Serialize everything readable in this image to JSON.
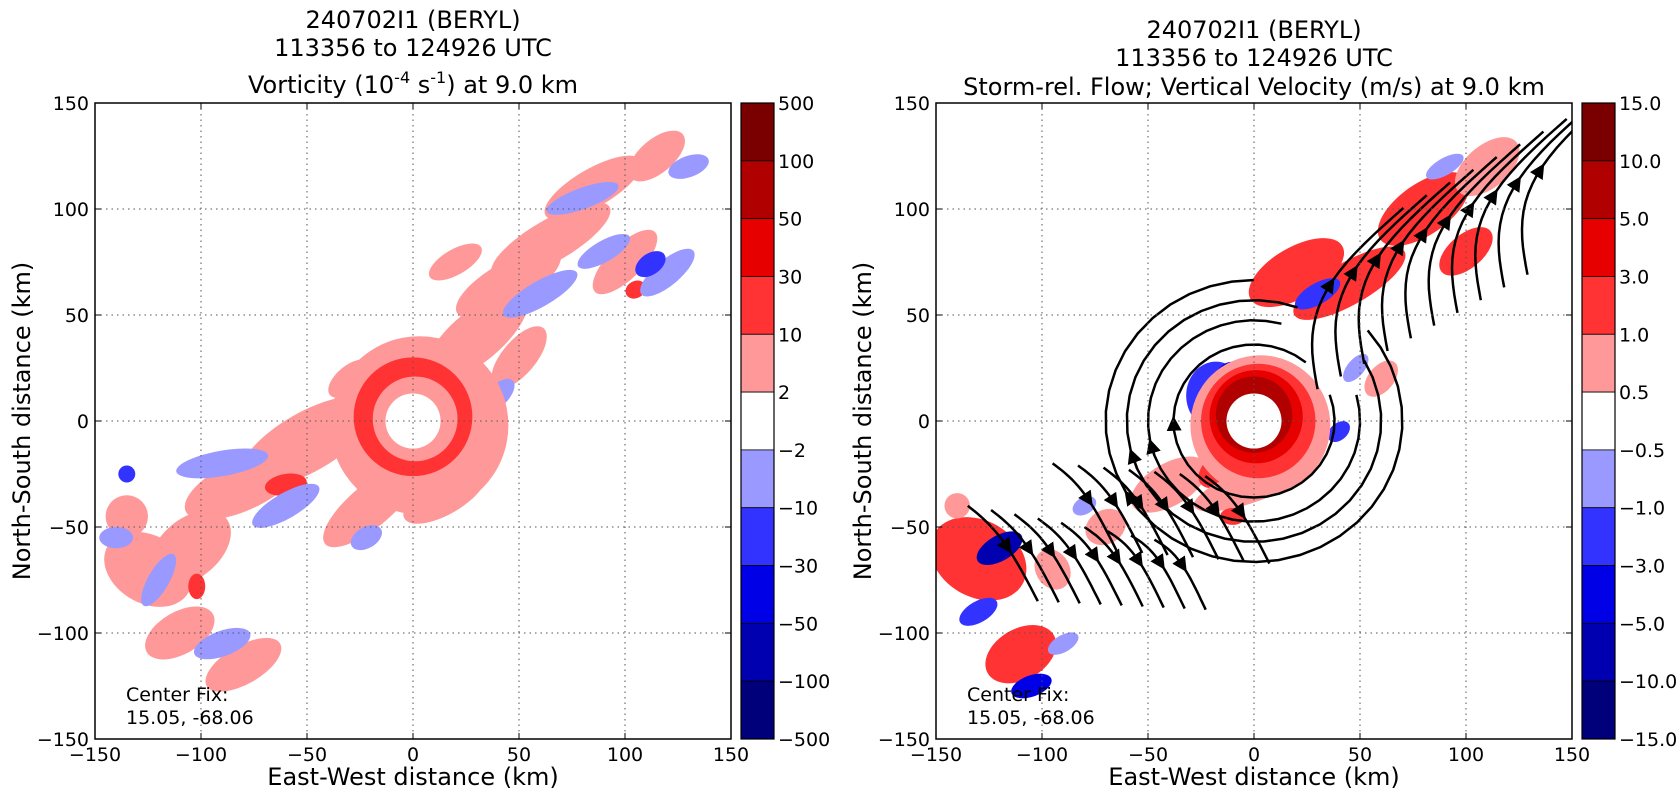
{
  "chart_data": [
    {
      "type": "heatmap",
      "title_lines": [
        "240702I1 (BERYL)",
        "113356 to 124926 UTC"
      ],
      "title_var_prefix": "Vorticity (10",
      "title_var_sup1": "-4",
      "title_var_mid": " s",
      "title_var_sup2": "-1",
      "title_var_suffix": ") at 9.0 km",
      "xlabel": "East-West distance (km)",
      "ylabel": "North-South distance (km)",
      "xlim": [
        -150,
        150
      ],
      "ylim": [
        -150,
        150
      ],
      "xticks": [
        -150,
        -100,
        -50,
        0,
        50,
        100,
        150
      ],
      "yticks": [
        -150,
        -100,
        -50,
        0,
        50,
        100,
        150
      ],
      "xtick_labels": [
        "−150",
        "−100",
        "−50",
        "0",
        "50",
        "100",
        "150"
      ],
      "ytick_labels": [
        "−150",
        "−100",
        "−50",
        "0",
        "50",
        "100",
        "150"
      ],
      "grid": true,
      "center_fix_label": "Center Fix:",
      "center_fix_value": "15.05, -68.06",
      "colorbar": {
        "levels": [
          "500",
          "100",
          "50",
          "30",
          "10",
          "2",
          "−2",
          "−10",
          "−30",
          "−50",
          "−100",
          "−500"
        ],
        "colors": [
          "#7a0000",
          "#b00000",
          "#e60000",
          "#ff3333",
          "#ff9999",
          "#ffffff",
          "#9999ff",
          "#3333ff",
          "#0000e6",
          "#0000b0",
          "#00007a"
        ]
      },
      "features": {
        "band_angle_deg": 45,
        "eye_radius": 13,
        "eyewall_levels": [
          {
            "r": 20,
            "level": 4,
            "dx": 1,
            "dy": 1
          },
          {
            "r": 28,
            "level": 3,
            "dx": 0,
            "dy": 2
          },
          {
            "r": 42,
            "level": 4,
            "dx": 3,
            "dy": -2
          }
        ],
        "blobs": [
          [
            -50,
            -10,
            36,
            14,
            30,
            4
          ],
          [
            -80,
            -30,
            30,
            12,
            25,
            4
          ],
          [
            -105,
            -60,
            22,
            14,
            40,
            4
          ],
          [
            -125,
            -70,
            16,
            22,
            60,
            4
          ],
          [
            -110,
            -100,
            18,
            10,
            30,
            4
          ],
          [
            -80,
            -115,
            20,
            9,
            30,
            4
          ],
          [
            -135,
            -45,
            10,
            10,
            0,
            4
          ],
          [
            -20,
            -40,
            28,
            10,
            40,
            4
          ],
          [
            15,
            -35,
            22,
            9,
            30,
            4
          ],
          [
            -30,
            20,
            12,
            6,
            40,
            4
          ],
          [
            30,
            40,
            30,
            12,
            40,
            4
          ],
          [
            45,
            65,
            28,
            10,
            30,
            4
          ],
          [
            65,
            85,
            32,
            10,
            30,
            4
          ],
          [
            85,
            110,
            26,
            9,
            30,
            4
          ],
          [
            115,
            125,
            16,
            8,
            40,
            4
          ],
          [
            100,
            75,
            20,
            8,
            45,
            4
          ],
          [
            20,
            75,
            14,
            6,
            30,
            4
          ],
          [
            50,
            30,
            18,
            8,
            50,
            4
          ],
          [
            -60,
            -30,
            10,
            5,
            10,
            3
          ],
          [
            105,
            62,
            5,
            4,
            30,
            3
          ],
          [
            -102,
            -78,
            4,
            6,
            0,
            3
          ],
          [
            -90,
            -20,
            22,
            6,
            10,
            6
          ],
          [
            -60,
            -40,
            18,
            6,
            30,
            6
          ],
          [
            -120,
            -75,
            14,
            5,
            60,
            6
          ],
          [
            -90,
            -105,
            14,
            6,
            20,
            6
          ],
          [
            -5,
            -30,
            12,
            5,
            60,
            6
          ],
          [
            -22,
            -55,
            8,
            5,
            30,
            6
          ],
          [
            40,
            12,
            10,
            5,
            45,
            6
          ],
          [
            60,
            60,
            20,
            6,
            30,
            6
          ],
          [
            80,
            105,
            18,
            5,
            20,
            6
          ],
          [
            90,
            80,
            14,
            5,
            30,
            6
          ],
          [
            120,
            70,
            16,
            6,
            40,
            6
          ],
          [
            130,
            120,
            10,
            5,
            20,
            6
          ],
          [
            -140,
            -55,
            8,
            5,
            0,
            6
          ],
          [
            112,
            74,
            8,
            5,
            35,
            7
          ],
          [
            -135,
            -25,
            4,
            4,
            0,
            7
          ]
        ]
      }
    },
    {
      "type": "heatmap",
      "title_lines": [
        "240702I1 (BERYL)",
        "113356 to 124926 UTC"
      ],
      "title_var": "Storm-rel. Flow; Vertical Velocity (m/s) at 9.0 km",
      "xlabel": "East-West distance (km)",
      "ylabel": "North-South distance (km)",
      "xlim": [
        -150,
        150
      ],
      "ylim": [
        -150,
        150
      ],
      "xticks": [
        -150,
        -100,
        -50,
        0,
        50,
        100,
        150
      ],
      "yticks": [
        -150,
        -100,
        -50,
        0,
        50,
        100,
        150
      ],
      "xtick_labels": [
        "−150",
        "−100",
        "−50",
        "0",
        "50",
        "100",
        "150"
      ],
      "ytick_labels": [
        "−150",
        "−100",
        "−50",
        "0",
        "50",
        "100",
        "150"
      ],
      "grid": true,
      "center_fix_label": "Center Fix:",
      "center_fix_value": "15.05, -68.06",
      "colorbar": {
        "levels": [
          "15.0",
          "10.0",
          "5.0",
          "3.0",
          "1.0",
          "0.5",
          "−0.5",
          "−1.0",
          "−3.0",
          "−5.0",
          "−10.0",
          "−15.0"
        ],
        "colors": [
          "#7a0000",
          "#b00000",
          "#e60000",
          "#ff3333",
          "#ff9999",
          "#ffffff",
          "#9999ff",
          "#3333ff",
          "#0000e6",
          "#0000b0",
          "#00007a"
        ]
      },
      "features": {
        "band_angle_deg": 45,
        "eye_radius": 13,
        "eyewall_levels": [
          {
            "r": 18,
            "level": 1,
            "dx": 0,
            "dy": 3
          },
          {
            "r": 22,
            "level": 2,
            "dx": 1,
            "dy": 2
          },
          {
            "r": 27,
            "level": 3,
            "dx": 2,
            "dy": 0
          },
          {
            "r": 33,
            "level": 4,
            "dx": 3,
            "dy": -2
          }
        ],
        "blobs": [
          [
            -130,
            -65,
            18,
            24,
            60,
            3
          ],
          [
            -110,
            -110,
            18,
            12,
            30,
            3
          ],
          [
            -40,
            -30,
            20,
            10,
            30,
            4
          ],
          [
            -10,
            -20,
            18,
            9,
            30,
            3
          ],
          [
            20,
            70,
            25,
            12,
            30,
            3
          ],
          [
            45,
            65,
            30,
            10,
            30,
            3
          ],
          [
            80,
            100,
            25,
            12,
            35,
            3
          ],
          [
            110,
            120,
            18,
            10,
            40,
            4
          ],
          [
            100,
            80,
            15,
            8,
            40,
            3
          ],
          [
            -70,
            -50,
            10,
            8,
            30,
            4
          ],
          [
            0,
            -30,
            30,
            8,
            20,
            4
          ],
          [
            60,
            20,
            10,
            6,
            50,
            4
          ],
          [
            -140,
            -40,
            6,
            6,
            0,
            4
          ],
          [
            -95,
            -70,
            8,
            10,
            30,
            4
          ],
          [
            -10,
            -45,
            6,
            4,
            0,
            3
          ],
          [
            -120,
            -60,
            12,
            6,
            30,
            9
          ],
          [
            -130,
            -90,
            10,
            5,
            30,
            7
          ],
          [
            -105,
            -125,
            10,
            5,
            20,
            8
          ],
          [
            -18,
            12,
            14,
            16,
            0,
            7
          ],
          [
            -10,
            20,
            8,
            8,
            0,
            8
          ],
          [
            30,
            60,
            12,
            5,
            30,
            7
          ],
          [
            48,
            25,
            8,
            4,
            50,
            6
          ],
          [
            40,
            -5,
            6,
            4,
            40,
            7
          ],
          [
            0,
            -28,
            10,
            4,
            0,
            7
          ],
          [
            -80,
            -40,
            6,
            4,
            30,
            6
          ],
          [
            90,
            120,
            10,
            4,
            30,
            6
          ],
          [
            -90,
            -105,
            8,
            4,
            30,
            6
          ]
        ],
        "streamlines_count": 30
      }
    }
  ]
}
